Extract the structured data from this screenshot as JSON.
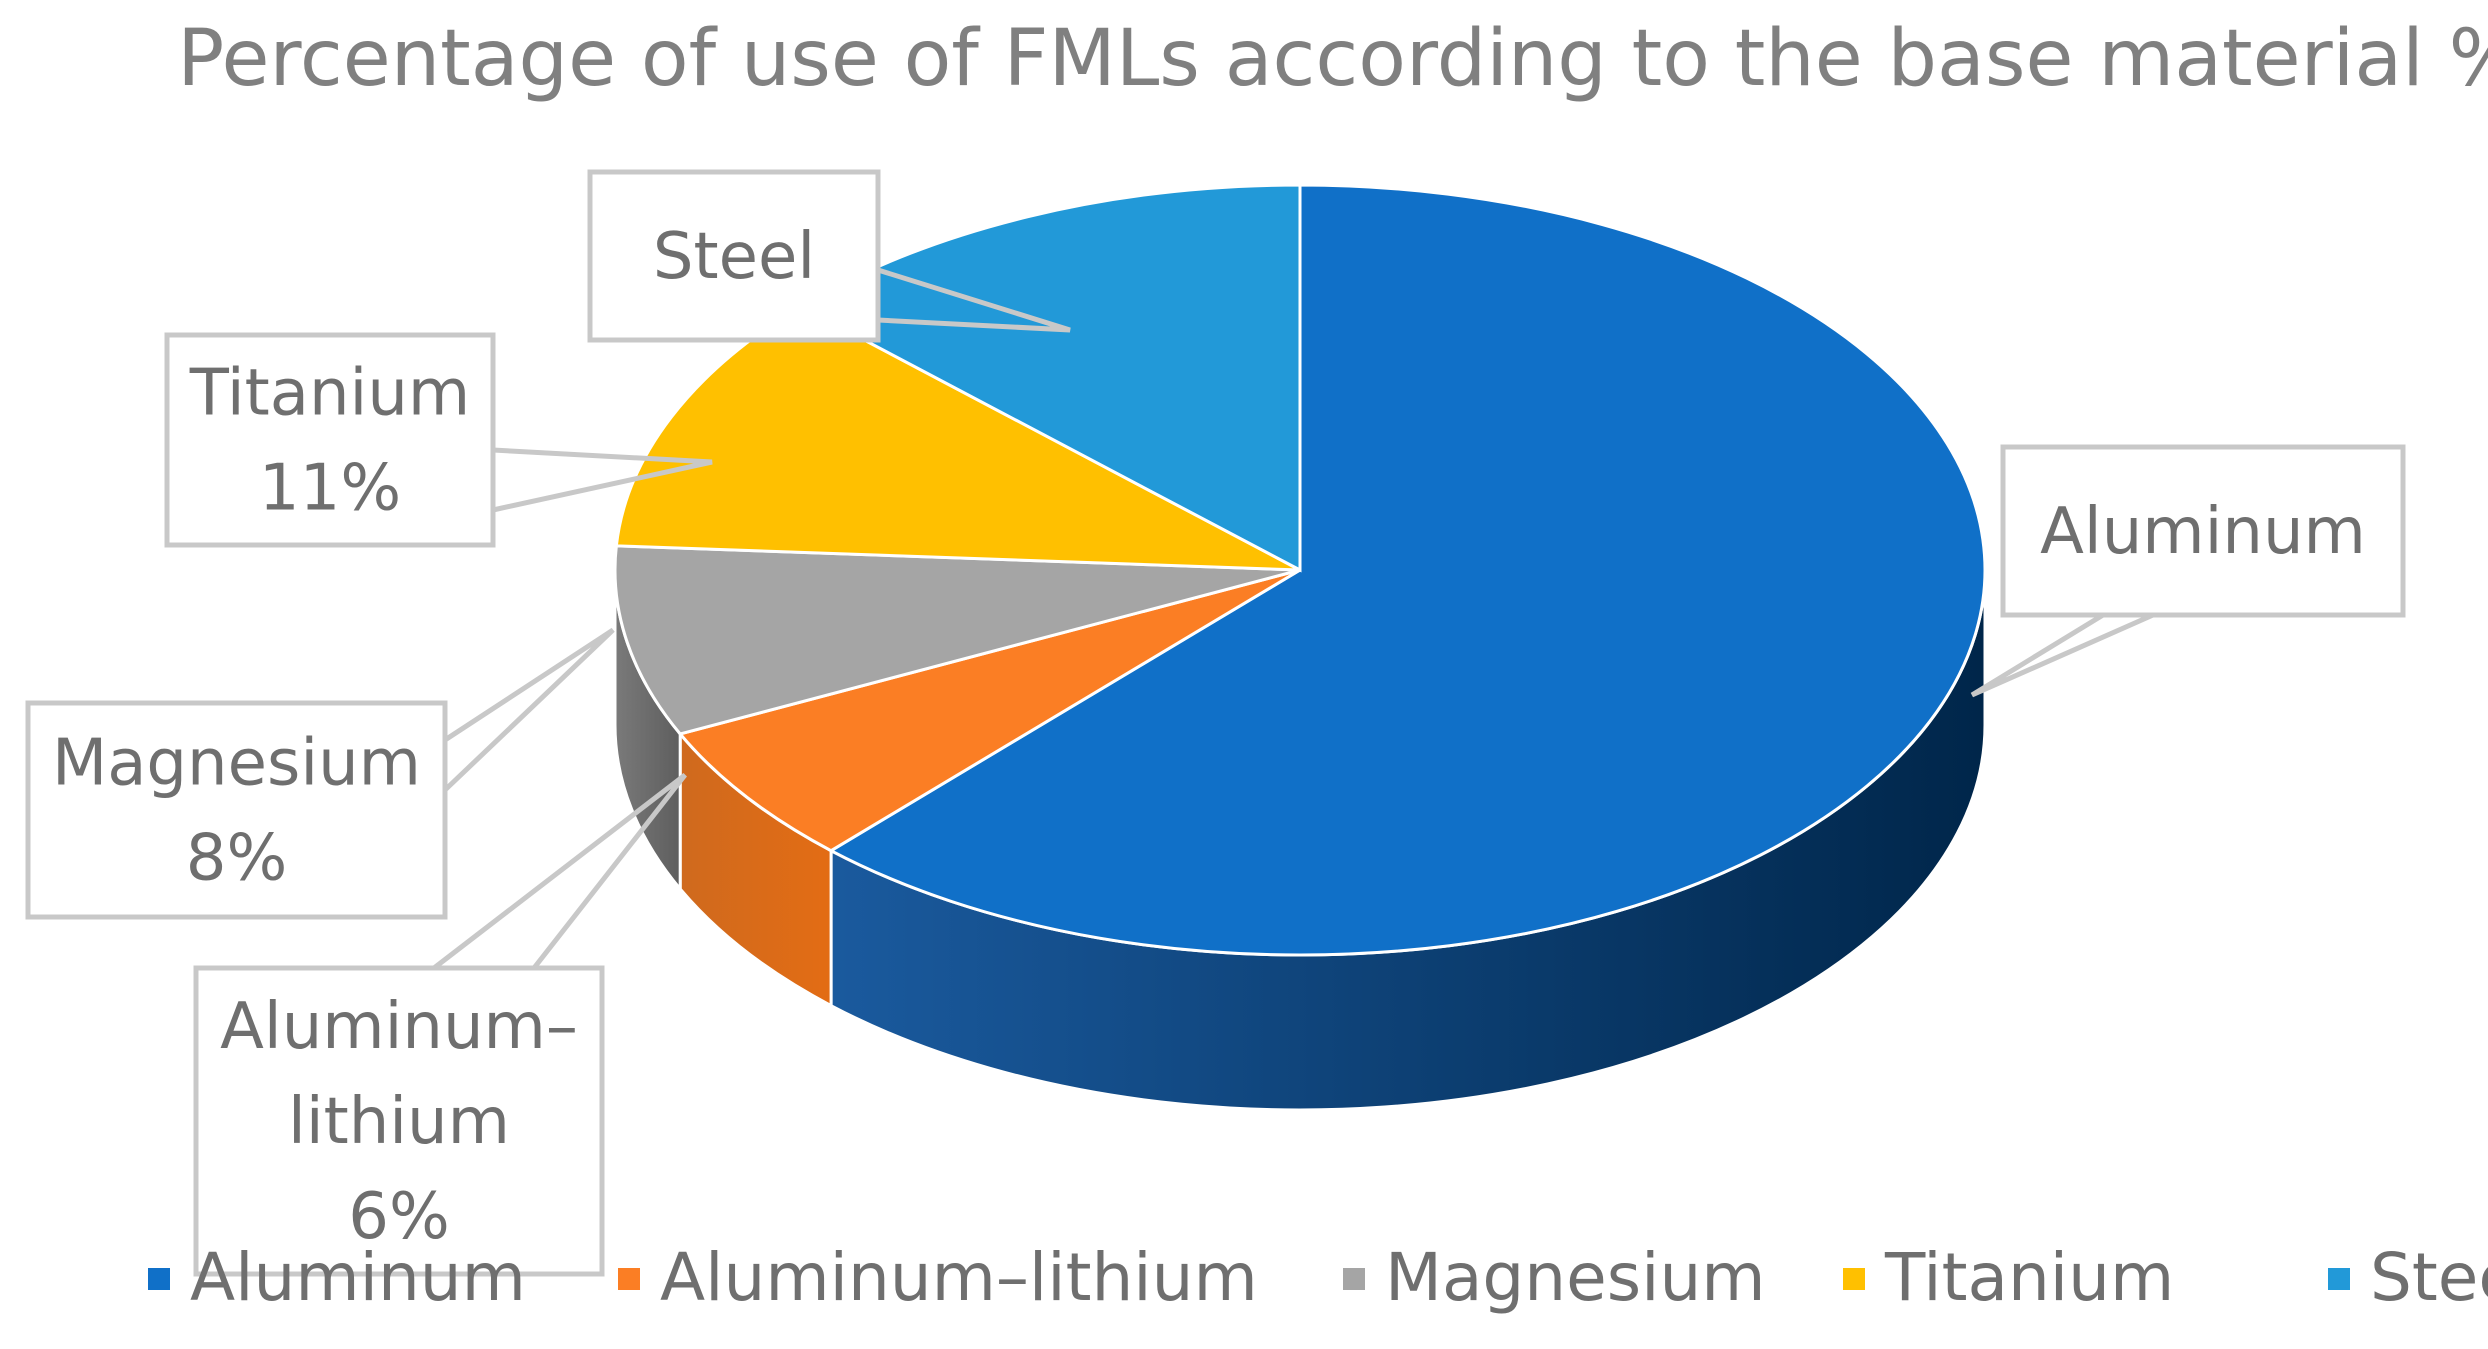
{
  "chart_data": {
    "type": "pie",
    "title": "Percentage of use of FMLs according to the base material %",
    "categories": [
      "Aluminum",
      "Aluminum–lithium",
      "Magnesium",
      "Titanium",
      "Steel"
    ],
    "values": [
      62,
      6,
      8,
      11,
      13
    ],
    "colors": [
      "#1070c8",
      "#fb7e24",
      "#a5a5a5",
      "#ffc000",
      "#2299d8"
    ],
    "data_labels": [
      {
        "category": "Aluminum",
        "lines": [
          "Aluminum"
        ]
      },
      {
        "category": "Aluminum–lithium",
        "lines": [
          "Aluminum–",
          "lithium",
          "6%"
        ]
      },
      {
        "category": "Magnesium",
        "lines": [
          "Magnesium",
          "8%"
        ]
      },
      {
        "category": "Titanium",
        "lines": [
          "Titanium",
          "11%"
        ]
      },
      {
        "category": "Steel",
        "lines": [
          "Steel"
        ]
      }
    ],
    "legend": {
      "position": "bottom",
      "entries": [
        "Aluminum",
        "Aluminum–lithium",
        "Magnesium",
        "Titanium",
        "Steel"
      ]
    },
    "style": "3d-pie"
  }
}
